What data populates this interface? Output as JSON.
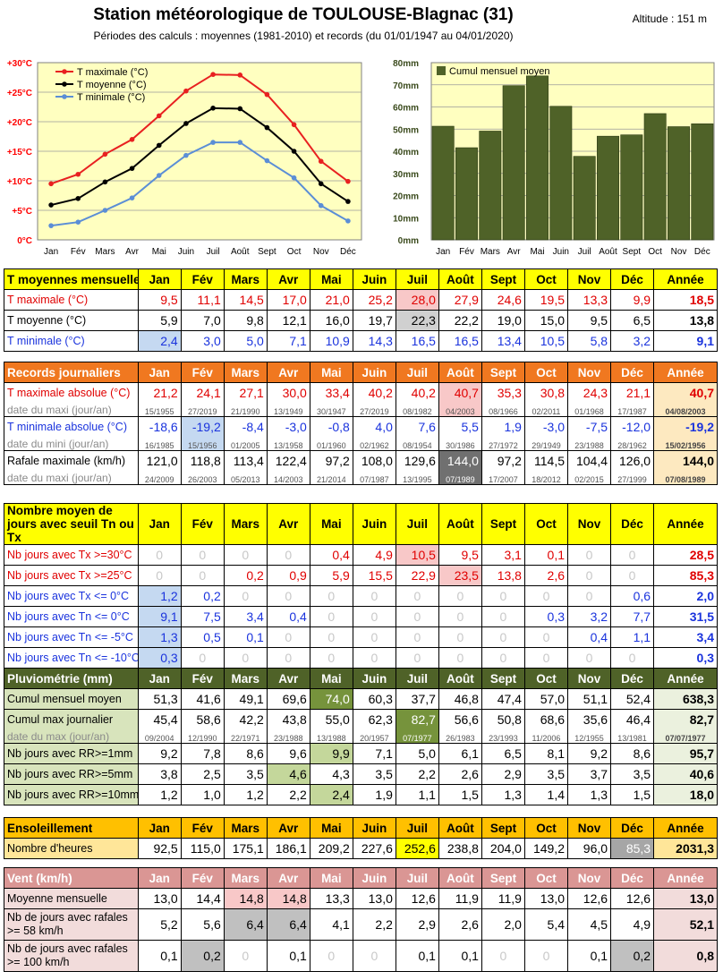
{
  "header": {
    "title": "Station météorologique de TOULOUSE-Blagnac (31)",
    "subtitle": "Périodes des calculs : moyennes (1981-2010) et records (du 01/01/1947 au 04/01/2020)",
    "altitude": "Altitude : 151 m"
  },
  "months": [
    "Jan",
    "Fév",
    "Mars",
    "Avr",
    "Mai",
    "Juin",
    "Juil",
    "Août",
    "Sept",
    "Oct",
    "Nov",
    "Déc"
  ],
  "chart_data": [
    {
      "type": "line",
      "x": [
        "Jan",
        "Fév",
        "Mars",
        "Avr",
        "Mai",
        "Juin",
        "Juil",
        "Août",
        "Sept",
        "Oct",
        "Nov",
        "Déc"
      ],
      "series": [
        {
          "name": "T maximale (°C)",
          "color": "#e82020",
          "values": [
            9.5,
            11.1,
            14.5,
            17.0,
            21.0,
            25.2,
            28.0,
            27.9,
            24.6,
            19.5,
            13.3,
            9.9
          ]
        },
        {
          "name": "T moyenne (°C)",
          "color": "#000000",
          "values": [
            5.9,
            7.0,
            9.8,
            12.1,
            16.0,
            19.7,
            22.3,
            22.2,
            19.0,
            15.0,
            9.5,
            6.5
          ]
        },
        {
          "name": "T minimale (°C)",
          "color": "#5b8ed6",
          "values": [
            2.4,
            3.0,
            5.0,
            7.1,
            10.9,
            14.3,
            16.5,
            16.5,
            13.4,
            10.5,
            5.8,
            3.2
          ]
        }
      ],
      "yticks": [
        "0°C",
        "+5°C",
        "+10°C",
        "+15°C",
        "+20°C",
        "+25°C",
        "+30°C"
      ],
      "ylim": [
        0,
        30
      ],
      "grid": true,
      "legend": "top-left",
      "background": "#ffffc0"
    },
    {
      "type": "bar",
      "categories": [
        "Jan",
        "Fév",
        "Mars",
        "Avr",
        "Mai",
        "Juin",
        "Juil",
        "Août",
        "Sept",
        "Oct",
        "Nov",
        "Déc"
      ],
      "series": [
        {
          "name": "Cumul mensuel moyen",
          "color": "#4f6228",
          "values": [
            51.3,
            41.6,
            49.1,
            69.6,
            74.0,
            60.3,
            37.7,
            46.8,
            47.4,
            57.0,
            51.1,
            52.4
          ]
        }
      ],
      "yticks": [
        "0mm",
        "10mm",
        "20mm",
        "30mm",
        "40mm",
        "50mm",
        "60mm",
        "70mm",
        "80mm"
      ],
      "ylim": [
        0,
        80
      ],
      "grid": true,
      "legend": "top-left",
      "background": "#ffffc0"
    }
  ],
  "tables": [
    {
      "id": "temp",
      "header": {
        "label": "T moyennes mensuelles",
        "bg": "#ffff00",
        "fg": "#000000",
        "year": "Année"
      },
      "rows": [
        {
          "label": "T maximale (°C)",
          "color": "#e00000",
          "values": [
            "9,5",
            "11,1",
            "14,5",
            "17,0",
            "21,0",
            "25,2",
            "28,0",
            "27,9",
            "24,6",
            "19,5",
            "13,3",
            "9,9"
          ],
          "year": "18,5",
          "hl": {
            "6": "#f8c8c8"
          }
        },
        {
          "label": "T moyenne (°C)",
          "color": "#000000",
          "values": [
            "5,9",
            "7,0",
            "9,8",
            "12,1",
            "16,0",
            "19,7",
            "22,3",
            "22,2",
            "19,0",
            "15,0",
            "9,5",
            "6,5"
          ],
          "year": "13,8",
          "hl": {
            "6": "#d0d0d0"
          }
        },
        {
          "label": "T minimale (°C)",
          "color": "#1a33dd",
          "values": [
            "2,4",
            "3,0",
            "5,0",
            "7,1",
            "10,9",
            "14,3",
            "16,5",
            "16,5",
            "13,4",
            "10,5",
            "5,8",
            "3,2"
          ],
          "year": "9,1",
          "hl": {
            "0": "#c5d9f1"
          }
        }
      ]
    },
    {
      "id": "records",
      "header": {
        "label": "Records journaliers",
        "bg": "#f07820",
        "fg": "#ffffff",
        "year": "Année"
      },
      "rows": [
        {
          "label": "T maximale absolue (°C)",
          "color": "#e00000",
          "values": [
            "21,2",
            "24,1",
            "27,1",
            "30,0",
            "33,4",
            "40,2",
            "40,2",
            "40,7",
            "35,3",
            "30,8",
            "24,3",
            "21,1"
          ],
          "year": "40,7",
          "year_bg": "#fde9c0",
          "hl": {
            "7": "#f8c8c8"
          },
          "date_label": "date du maxi (jour/an)",
          "dates": [
            "15/1955",
            "27/2019",
            "21/1990",
            "13/1949",
            "30/1947",
            "27/2019",
            "08/1982",
            "04/2003",
            "08/1966",
            "02/2011",
            "01/1968",
            "17/1987"
          ],
          "date_year": "04/08/2003"
        },
        {
          "label": "T minimale absolue (°C)",
          "color": "#1a33dd",
          "values": [
            "-18,6",
            "-19,2",
            "-8,4",
            "-3,0",
            "-0,8",
            "4,0",
            "7,6",
            "5,5",
            "1,9",
            "-3,0",
            "-7,5",
            "-12,0"
          ],
          "year": "-19,2",
          "year_bg": "#fde9c0",
          "hl": {
            "1": "#c5d9f1"
          },
          "date_label": "date du mini (jour/an)",
          "dates": [
            "16/1985",
            "15/1956",
            "01/2005",
            "13/1958",
            "01/1960",
            "02/1962",
            "08/1954",
            "30/1986",
            "27/1972",
            "29/1949",
            "23/1988",
            "28/1962"
          ],
          "date_year": "15/02/1956"
        },
        {
          "label": "Rafale maximale (km/h)",
          "color": "#000000",
          "values": [
            "121,0",
            "118,8",
            "113,4",
            "122,4",
            "97,2",
            "108,0",
            "129,6",
            "144,0",
            "97,2",
            "114,5",
            "104,4",
            "126,0"
          ],
          "year": "144,0",
          "year_bg": "#fde9c0",
          "hl": {
            "7": "#707070"
          },
          "hl_fg": {
            "7": "#ffffff"
          },
          "date_label": "date du maxi (jour/an)",
          "dates": [
            "24/2009",
            "26/2003",
            "05/2013",
            "14/2003",
            "21/2014",
            "07/1987",
            "13/1995",
            "07/1989",
            "17/2007",
            "18/2012",
            "02/2015",
            "27/1999"
          ],
          "date_year": "07/08/1989"
        }
      ]
    },
    {
      "id": "seuils",
      "header": {
        "label": "Nombre moyen de jours avec seuil Tn ou Tx",
        "bg": "#ffff00",
        "fg": "#000000",
        "year": "Année"
      },
      "rows": [
        {
          "label": "Nb jours avec Tx >=30°C",
          "color": "#e00000",
          "values": [
            "0",
            "0",
            "0",
            "0",
            "0,4",
            "4,9",
            "10,5",
            "9,5",
            "3,1",
            "0,1",
            "0",
            "0"
          ],
          "year": "28,5",
          "hl": {
            "6": "#f8c8c8"
          }
        },
        {
          "label": "Nb jours avec Tx >=25°C",
          "color": "#e00000",
          "values": [
            "0",
            "0",
            "0,2",
            "0,9",
            "5,9",
            "15,5",
            "22,9",
            "23,5",
            "13,8",
            "2,6",
            "0",
            "0"
          ],
          "year": "85,3",
          "hl": {
            "7": "#f8c8c8"
          }
        },
        {
          "label": "Nb jours avec Tx <= 0°C",
          "color": "#1a33dd",
          "values": [
            "1,2",
            "0,2",
            "0",
            "0",
            "0",
            "0",
            "0",
            "0",
            "0",
            "0",
            "0",
            "0,6"
          ],
          "year": "2,0",
          "hl": {
            "0": "#c5d9f1"
          }
        },
        {
          "label": "Nb jours avec Tn <= 0°C",
          "color": "#1a33dd",
          "values": [
            "9,1",
            "7,5",
            "3,4",
            "0,4",
            "0",
            "0",
            "0",
            "0",
            "0",
            "0,3",
            "3,2",
            "7,7"
          ],
          "year": "31,5",
          "hl": {
            "0": "#c5d9f1"
          }
        },
        {
          "label": "Nb jours avec Tn <= -5°C",
          "color": "#1a33dd",
          "values": [
            "1,3",
            "0,5",
            "0,1",
            "0",
            "0",
            "0",
            "0",
            "0",
            "0",
            "0",
            "0,4",
            "1,1"
          ],
          "year": "3,4",
          "hl": {
            "0": "#c5d9f1"
          }
        },
        {
          "label": "Nb jours avec Tn <= -10°C",
          "color": "#1a33dd",
          "values": [
            "0,3",
            "0",
            "0",
            "0",
            "0",
            "0",
            "0",
            "0",
            "0",
            "0",
            "0",
            "0"
          ],
          "year": "0,3",
          "hl": {
            "0": "#c5d9f1"
          }
        }
      ]
    },
    {
      "id": "pluie",
      "header": {
        "label": "Pluviométrie (mm)",
        "bg": "#4f6228",
        "fg": "#ffffff",
        "year": "Année"
      },
      "rows": [
        {
          "label": "Cumul mensuel moyen",
          "color": "#000000",
          "label_bg": "#d8e4bc",
          "values": [
            "51,3",
            "41,6",
            "49,1",
            "69,6",
            "74,0",
            "60,3",
            "37,7",
            "46,8",
            "47,4",
            "57,0",
            "51,1",
            "52,4"
          ],
          "year": "638,3",
          "year_bg": "#ebf1de",
          "hl": {
            "4": "#76933c"
          },
          "hl_fg": {
            "4": "#ffffff"
          }
        },
        {
          "label": "Cumul max journalier",
          "color": "#000000",
          "label_bg": "#d8e4bc",
          "values": [
            "45,4",
            "58,6",
            "42,2",
            "43,8",
            "55,0",
            "62,3",
            "82,7",
            "56,6",
            "50,8",
            "68,6",
            "35,6",
            "46,4"
          ],
          "year": "82,7",
          "year_bg": "#ebf1de",
          "hl": {
            "6": "#76933c"
          },
          "hl_fg": {
            "6": "#ffffff"
          },
          "date_label": "date du max (jour/an)",
          "dates": [
            "09/2004",
            "12/1990",
            "22/1971",
            "23/1988",
            "13/1988",
            "20/1957",
            "07/1977",
            "26/1983",
            "23/1993",
            "11/2006",
            "12/1955",
            "13/1981"
          ],
          "date_year": "07/07/1977"
        },
        {
          "label": "Nb jours avec RR>=1mm",
          "color": "#000000",
          "label_bg": "#d8e4bc",
          "values": [
            "9,2",
            "7,8",
            "8,6",
            "9,6",
            "9,9",
            "7,1",
            "5,0",
            "6,1",
            "6,5",
            "8,1",
            "9,2",
            "8,6"
          ],
          "year": "95,7",
          "year_bg": "#ebf1de",
          "hl": {
            "4": "#c4d79b"
          }
        },
        {
          "label": "Nb jours avec RR>=5mm",
          "color": "#000000",
          "label_bg": "#d8e4bc",
          "values": [
            "3,8",
            "2,5",
            "3,5",
            "4,6",
            "4,3",
            "3,5",
            "2,2",
            "2,6",
            "2,9",
            "3,5",
            "3,7",
            "3,5"
          ],
          "year": "40,6",
          "year_bg": "#ebf1de",
          "hl": {
            "3": "#c4d79b"
          }
        },
        {
          "label": "Nb jours avec RR>=10mm",
          "color": "#000000",
          "label_bg": "#d8e4bc",
          "values": [
            "1,2",
            "1,0",
            "1,2",
            "2,2",
            "2,4",
            "1,9",
            "1,1",
            "1,5",
            "1,3",
            "1,4",
            "1,3",
            "1,5"
          ],
          "year": "18,0",
          "year_bg": "#ebf1de",
          "hl": {
            "4": "#c4d79b"
          }
        }
      ]
    },
    {
      "id": "soleil",
      "header": {
        "label": "Ensoleillement",
        "bg": "#ffc000",
        "fg": "#000000",
        "year": "Année"
      },
      "rows": [
        {
          "label": "Nombre d'heures",
          "color": "#000000",
          "label_bg": "#ffe699",
          "values": [
            "92,5",
            "115,0",
            "175,1",
            "186,1",
            "209,2",
            "227,6",
            "252,6",
            "238,8",
            "204,0",
            "149,2",
            "96,0",
            "85,3"
          ],
          "year": "2031,3",
          "year_bg": "#ffe699",
          "hl": {
            "6": "#ffff00",
            "11": "#a6a6a6"
          },
          "hl_fg": {
            "11": "#ffffff"
          }
        }
      ]
    },
    {
      "id": "vent",
      "header": {
        "label": "Vent (km/h)",
        "bg": "#da9694",
        "fg": "#ffffff",
        "year": "Année"
      },
      "rows": [
        {
          "label": "Moyenne mensuelle",
          "color": "#000000",
          "label_bg": "#f2dcdb",
          "values": [
            "13,0",
            "14,4",
            "14,8",
            "14,8",
            "13,3",
            "13,0",
            "12,6",
            "11,9",
            "11,9",
            "13,0",
            "12,6",
            "12,6"
          ],
          "year": "13,0",
          "year_bg": "#f2dcdb",
          "hl": {
            "2": "#f8c8c8",
            "3": "#f8c8c8"
          }
        },
        {
          "label": "Nb de jours avec rafales >= 58 km/h",
          "wrap": true,
          "color": "#000000",
          "label_bg": "#f2dcdb",
          "values": [
            "5,2",
            "5,6",
            "6,4",
            "6,4",
            "4,1",
            "2,2",
            "2,9",
            "2,6",
            "2,0",
            "5,4",
            "4,5",
            "4,9"
          ],
          "year": "52,1",
          "year_bg": "#f2dcdb",
          "hl": {
            "2": "#c0c0c0",
            "3": "#c0c0c0"
          }
        },
        {
          "label": "Nb de jours avec rafales >= 100 km/h",
          "wrap": true,
          "color": "#000000",
          "label_bg": "#f2dcdb",
          "values": [
            "0,1",
            "0,2",
            "0",
            "0,1",
            "0",
            "0",
            "0,1",
            "0,1",
            "0",
            "0",
            "0,1",
            "0,2"
          ],
          "year": "0,8",
          "year_bg": "#f2dcdb",
          "hl": {
            "1": "#c0c0c0",
            "11": "#c0c0c0"
          }
        }
      ]
    }
  ]
}
